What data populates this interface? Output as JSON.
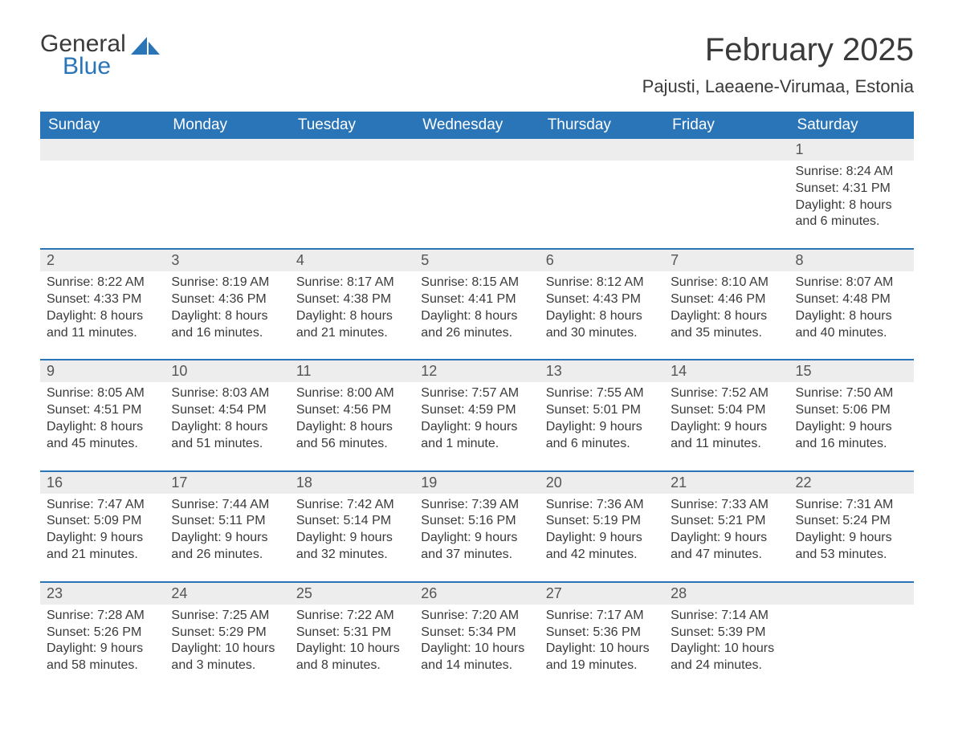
{
  "logo": {
    "text1": "General",
    "text2": "Blue"
  },
  "title": "February 2025",
  "location": "Pajusti, Laeaene-Virumaa, Estonia",
  "colors": {
    "header_bg": "#2a74b8",
    "header_text": "#ffffff",
    "daynum_bg": "#ededed",
    "border": "#2a74b8",
    "body_text": "#3a3a3a",
    "logo_blue": "#2a74b8",
    "page_bg": "#ffffff"
  },
  "typography": {
    "title_fontsize": 40,
    "location_fontsize": 22,
    "dayheader_fontsize": 19,
    "daynum_fontsize": 18,
    "content_fontsize": 16
  },
  "day_names": [
    "Sunday",
    "Monday",
    "Tuesday",
    "Wednesday",
    "Thursday",
    "Friday",
    "Saturday"
  ],
  "labels": {
    "sunrise": "Sunrise: ",
    "sunset": "Sunset: ",
    "daylight": "Daylight: "
  },
  "weeks": [
    [
      {
        "n": "",
        "empty": true
      },
      {
        "n": "",
        "empty": true
      },
      {
        "n": "",
        "empty": true
      },
      {
        "n": "",
        "empty": true
      },
      {
        "n": "",
        "empty": true
      },
      {
        "n": "",
        "empty": true
      },
      {
        "n": "1",
        "sunrise": "8:24 AM",
        "sunset": "4:31 PM",
        "daylight": "8 hours and 6 minutes."
      }
    ],
    [
      {
        "n": "2",
        "sunrise": "8:22 AM",
        "sunset": "4:33 PM",
        "daylight": "8 hours and 11 minutes."
      },
      {
        "n": "3",
        "sunrise": "8:19 AM",
        "sunset": "4:36 PM",
        "daylight": "8 hours and 16 minutes."
      },
      {
        "n": "4",
        "sunrise": "8:17 AM",
        "sunset": "4:38 PM",
        "daylight": "8 hours and 21 minutes."
      },
      {
        "n": "5",
        "sunrise": "8:15 AM",
        "sunset": "4:41 PM",
        "daylight": "8 hours and 26 minutes."
      },
      {
        "n": "6",
        "sunrise": "8:12 AM",
        "sunset": "4:43 PM",
        "daylight": "8 hours and 30 minutes."
      },
      {
        "n": "7",
        "sunrise": "8:10 AM",
        "sunset": "4:46 PM",
        "daylight": "8 hours and 35 minutes."
      },
      {
        "n": "8",
        "sunrise": "8:07 AM",
        "sunset": "4:48 PM",
        "daylight": "8 hours and 40 minutes."
      }
    ],
    [
      {
        "n": "9",
        "sunrise": "8:05 AM",
        "sunset": "4:51 PM",
        "daylight": "8 hours and 45 minutes."
      },
      {
        "n": "10",
        "sunrise": "8:03 AM",
        "sunset": "4:54 PM",
        "daylight": "8 hours and 51 minutes."
      },
      {
        "n": "11",
        "sunrise": "8:00 AM",
        "sunset": "4:56 PM",
        "daylight": "8 hours and 56 minutes."
      },
      {
        "n": "12",
        "sunrise": "7:57 AM",
        "sunset": "4:59 PM",
        "daylight": "9 hours and 1 minute."
      },
      {
        "n": "13",
        "sunrise": "7:55 AM",
        "sunset": "5:01 PM",
        "daylight": "9 hours and 6 minutes."
      },
      {
        "n": "14",
        "sunrise": "7:52 AM",
        "sunset": "5:04 PM",
        "daylight": "9 hours and 11 minutes."
      },
      {
        "n": "15",
        "sunrise": "7:50 AM",
        "sunset": "5:06 PM",
        "daylight": "9 hours and 16 minutes."
      }
    ],
    [
      {
        "n": "16",
        "sunrise": "7:47 AM",
        "sunset": "5:09 PM",
        "daylight": "9 hours and 21 minutes."
      },
      {
        "n": "17",
        "sunrise": "7:44 AM",
        "sunset": "5:11 PM",
        "daylight": "9 hours and 26 minutes."
      },
      {
        "n": "18",
        "sunrise": "7:42 AM",
        "sunset": "5:14 PM",
        "daylight": "9 hours and 32 minutes."
      },
      {
        "n": "19",
        "sunrise": "7:39 AM",
        "sunset": "5:16 PM",
        "daylight": "9 hours and 37 minutes."
      },
      {
        "n": "20",
        "sunrise": "7:36 AM",
        "sunset": "5:19 PM",
        "daylight": "9 hours and 42 minutes."
      },
      {
        "n": "21",
        "sunrise": "7:33 AM",
        "sunset": "5:21 PM",
        "daylight": "9 hours and 47 minutes."
      },
      {
        "n": "22",
        "sunrise": "7:31 AM",
        "sunset": "5:24 PM",
        "daylight": "9 hours and 53 minutes."
      }
    ],
    [
      {
        "n": "23",
        "sunrise": "7:28 AM",
        "sunset": "5:26 PM",
        "daylight": "9 hours and 58 minutes."
      },
      {
        "n": "24",
        "sunrise": "7:25 AM",
        "sunset": "5:29 PM",
        "daylight": "10 hours and 3 minutes."
      },
      {
        "n": "25",
        "sunrise": "7:22 AM",
        "sunset": "5:31 PM",
        "daylight": "10 hours and 8 minutes."
      },
      {
        "n": "26",
        "sunrise": "7:20 AM",
        "sunset": "5:34 PM",
        "daylight": "10 hours and 14 minutes."
      },
      {
        "n": "27",
        "sunrise": "7:17 AM",
        "sunset": "5:36 PM",
        "daylight": "10 hours and 19 minutes."
      },
      {
        "n": "28",
        "sunrise": "7:14 AM",
        "sunset": "5:39 PM",
        "daylight": "10 hours and 24 minutes."
      },
      {
        "n": "",
        "empty": true
      }
    ]
  ]
}
